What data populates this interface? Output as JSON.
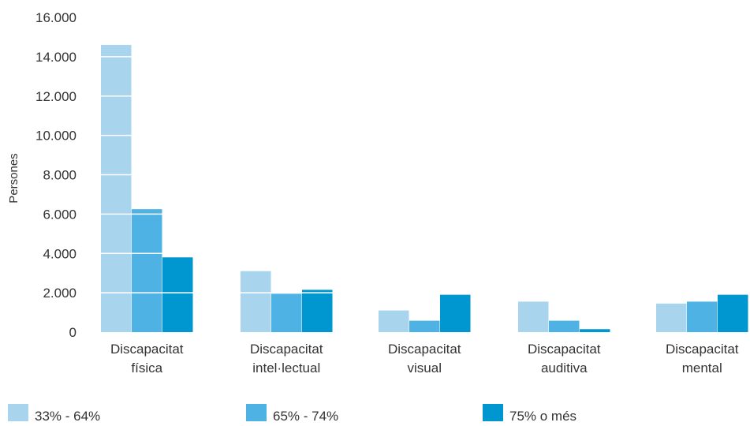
{
  "chart_data": {
    "type": "bar",
    "title": "",
    "xlabel": "",
    "ylabel": "Persones",
    "ylim": [
      0,
      16000
    ],
    "yticks": [
      0,
      2000,
      4000,
      6000,
      8000,
      10000,
      12000,
      14000,
      16000
    ],
    "ytick_labels": [
      "0",
      "2.000",
      "4.000",
      "6.000",
      "8.000",
      "10.000",
      "12.000",
      "14.000",
      "16.000"
    ],
    "grid": "white lines over bars",
    "legend_position": "bottom",
    "categories": [
      [
        "Discapacitat",
        "física"
      ],
      [
        "Discapacitat",
        "intel·lectual"
      ],
      [
        "Discapacitat",
        "visual"
      ],
      [
        "Discapacitat",
        "auditiva"
      ],
      [
        "Discapacitat",
        "mental"
      ]
    ],
    "series": [
      {
        "name": "33% - 64%",
        "color": "#a8d4ee",
        "values": [
          14600,
          3100,
          1100,
          1550,
          1450
        ]
      },
      {
        "name": "65% - 74%",
        "color": "#4eb3e4",
        "values": [
          6250,
          1950,
          580,
          580,
          1550
        ]
      },
      {
        "name": "75% o més",
        "color": "#0096cf",
        "values": [
          3800,
          2150,
          1900,
          150,
          1900
        ]
      }
    ]
  }
}
